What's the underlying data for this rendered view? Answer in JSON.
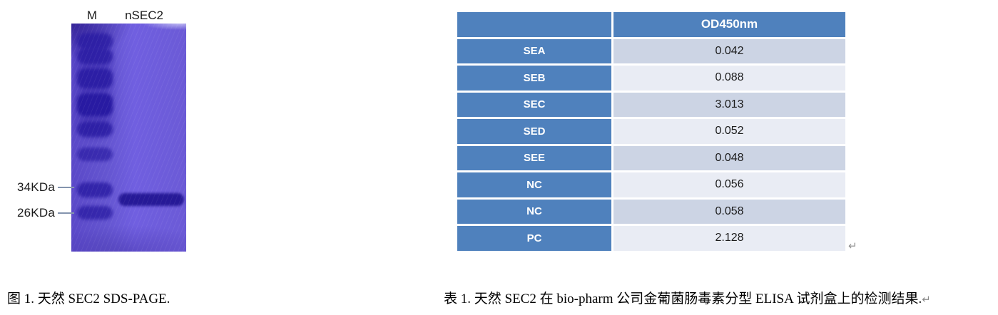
{
  "figure": {
    "marker_lane_label": "M",
    "sample_lane_label": "nSEC2",
    "mw_labels": [
      "34KDa",
      "26KDa"
    ],
    "caption": "图 1. 天然 SEC2 SDS-PAGE."
  },
  "table": {
    "header": [
      "",
      "OD450nm"
    ],
    "rows": [
      {
        "label": "SEA",
        "value": "0.042"
      },
      {
        "label": "SEB",
        "value": "0.088"
      },
      {
        "label": "SEC",
        "value": "3.013"
      },
      {
        "label": "SED",
        "value": "0.052"
      },
      {
        "label": "SEE",
        "value": "0.048"
      },
      {
        "label": "NC",
        "value": "0.056"
      },
      {
        "label": "NC",
        "value": "0.058"
      },
      {
        "label": "PC",
        "value": "2.128"
      }
    ],
    "caption": "表 1. 天然 SEC2 在 bio-pharm 公司金葡菌肠毒素分型 ELISA 试剂盒上的检测结果."
  },
  "marks": {
    "return": "↵"
  },
  "colors": {
    "accent_blue": "#4f81bd",
    "band_dark": "#ccd4e4",
    "band_light": "#e9ecf4",
    "gel_purple": "#6b5ad6",
    "gel_band_indigo": "#281aa2"
  }
}
